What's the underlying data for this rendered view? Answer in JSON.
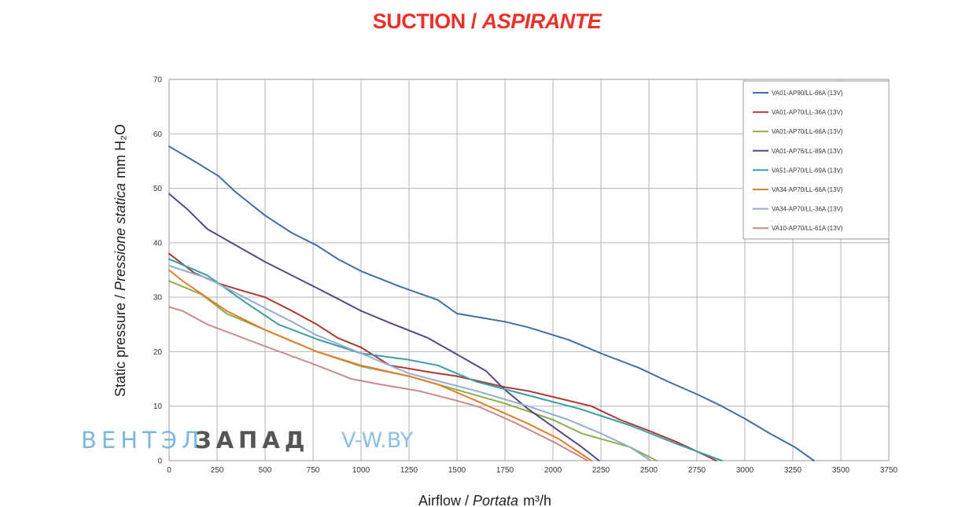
{
  "title": {
    "part1": "SUCTION / ",
    "part2": "ASPIRANTE"
  },
  "watermark": {
    "part1": "ВЕНТЭЛ",
    "part2": "ЗАПАД",
    "part3": "V-W.BY"
  },
  "chart_data": {
    "type": "line",
    "title": "SUCTION / ASPIRANTE",
    "xlabel": {
      "main": "Airflow / ",
      "italic": "Portata",
      "unit": "m³/h"
    },
    "ylabel": {
      "main": "Static pressure / ",
      "italic": "Pressione statica",
      "unit": "mm H₂O"
    },
    "xlim": [
      0,
      3750
    ],
    "ylim": [
      0,
      70
    ],
    "xticks": [
      0,
      250,
      500,
      750,
      1000,
      1250,
      1500,
      1750,
      2000,
      2250,
      2500,
      2750,
      3000,
      3250,
      3500,
      3750
    ],
    "yticks": [
      0,
      10,
      20,
      30,
      40,
      50,
      60,
      70
    ],
    "grid": true,
    "legend_position": "top-right",
    "series": [
      {
        "name": "VA01-AP90/LL-66A (13V)",
        "color": "#3f6ea8",
        "x": [
          0,
          130,
          260,
          340,
          500,
          640,
          770,
          880,
          1000,
          1200,
          1400,
          1500,
          1750,
          1870,
          2080,
          2250,
          2450,
          2600,
          2750,
          2880,
          3000,
          3130,
          3260,
          3360
        ],
        "y": [
          57.7,
          55.0,
          52.2,
          49.5,
          45.0,
          41.8,
          39.5,
          37.0,
          34.8,
          32.0,
          29.5,
          27.0,
          25.5,
          24.5,
          22.2,
          19.7,
          17.0,
          14.5,
          12.2,
          10.0,
          7.7,
          5.0,
          2.5,
          0
        ]
      },
      {
        "name": "VA01-AP70/LL-36A (13V)",
        "color": "#a83a36",
        "x": [
          0,
          130,
          260,
          400,
          500,
          640,
          770,
          880,
          1000,
          1150,
          1350,
          1500,
          1750,
          1870,
          2000,
          2200,
          2350,
          2500,
          2640,
          2780,
          2850
        ],
        "y": [
          38.0,
          34.5,
          32.5,
          31.0,
          30.0,
          27.5,
          25.0,
          22.5,
          20.8,
          17.5,
          16.3,
          15.5,
          13.5,
          12.8,
          11.7,
          10.0,
          7.5,
          5.5,
          3.5,
          1.2,
          0
        ]
      },
      {
        "name": "VA01-AP70/LL-66A (13V)",
        "color": "#8bad4e",
        "x": [
          0,
          170,
          300,
          500,
          770,
          1000,
          1250,
          1500,
          1750,
          2000,
          2150,
          2400,
          2540
        ],
        "y": [
          33.0,
          30.5,
          27.0,
          24.0,
          20.0,
          17.3,
          15.5,
          13.0,
          10.5,
          7.5,
          5.0,
          2.5,
          0
        ]
      },
      {
        "name": "VA01-AP76/LL-89A (13V)",
        "color": "#5a4783",
        "x": [
          0,
          100,
          200,
          300,
          500,
          640,
          770,
          880,
          1000,
          1150,
          1350,
          1500,
          1650,
          1750,
          1870,
          2050,
          2150,
          2240
        ],
        "y": [
          49.0,
          46.0,
          42.5,
          40.5,
          36.5,
          34.0,
          31.7,
          29.7,
          27.5,
          25.3,
          22.5,
          19.5,
          16.5,
          13.0,
          9.5,
          5.0,
          2.5,
          0
        ]
      },
      {
        "name": "VA51-AP70/LL-69A (13V)",
        "color": "#3a9ea3",
        "x": [
          0,
          200,
          400,
          570,
          770,
          1000,
          1250,
          1400,
          1600,
          1870,
          2140,
          2400,
          2650,
          2880
        ],
        "y": [
          37.0,
          34.0,
          29.0,
          25.0,
          22.3,
          19.7,
          18.5,
          17.5,
          14.5,
          12.0,
          9.5,
          6.5,
          3.0,
          0
        ]
      },
      {
        "name": "VA34-AP70/LL-66A (13V)",
        "color": "#e17d2d",
        "x": [
          0,
          70,
          300,
          500,
          770,
          1000,
          1250,
          1400,
          1600,
          1870,
          2030,
          2200
        ],
        "y": [
          35.0,
          33.0,
          27.5,
          24.0,
          20.0,
          17.5,
          15.5,
          14.0,
          11.0,
          6.8,
          4.0,
          0
        ]
      },
      {
        "name": "VA34-AP70/LL-36A (13V)",
        "color": "#94acd0",
        "x": [
          0,
          200,
          500,
          640,
          770,
          1000,
          1250,
          1600,
          1870,
          2080,
          2250,
          2400,
          2510
        ],
        "y": [
          35.8,
          33.5,
          28.0,
          25.5,
          23.0,
          19.7,
          16.0,
          12.8,
          10.0,
          7.5,
          5.0,
          2.5,
          0
        ]
      },
      {
        "name": "VA10-AP70/LL-61A (13V)",
        "color": "#c98a89",
        "x": [
          0,
          70,
          200,
          500,
          770,
          950,
          1100,
          1300,
          1500,
          1620,
          1800,
          2000,
          2130,
          2180
        ],
        "y": [
          28.2,
          27.5,
          25.0,
          21.0,
          17.5,
          15.0,
          14.0,
          12.8,
          11.0,
          9.8,
          7.0,
          3.5,
          1.0,
          0
        ]
      }
    ]
  }
}
